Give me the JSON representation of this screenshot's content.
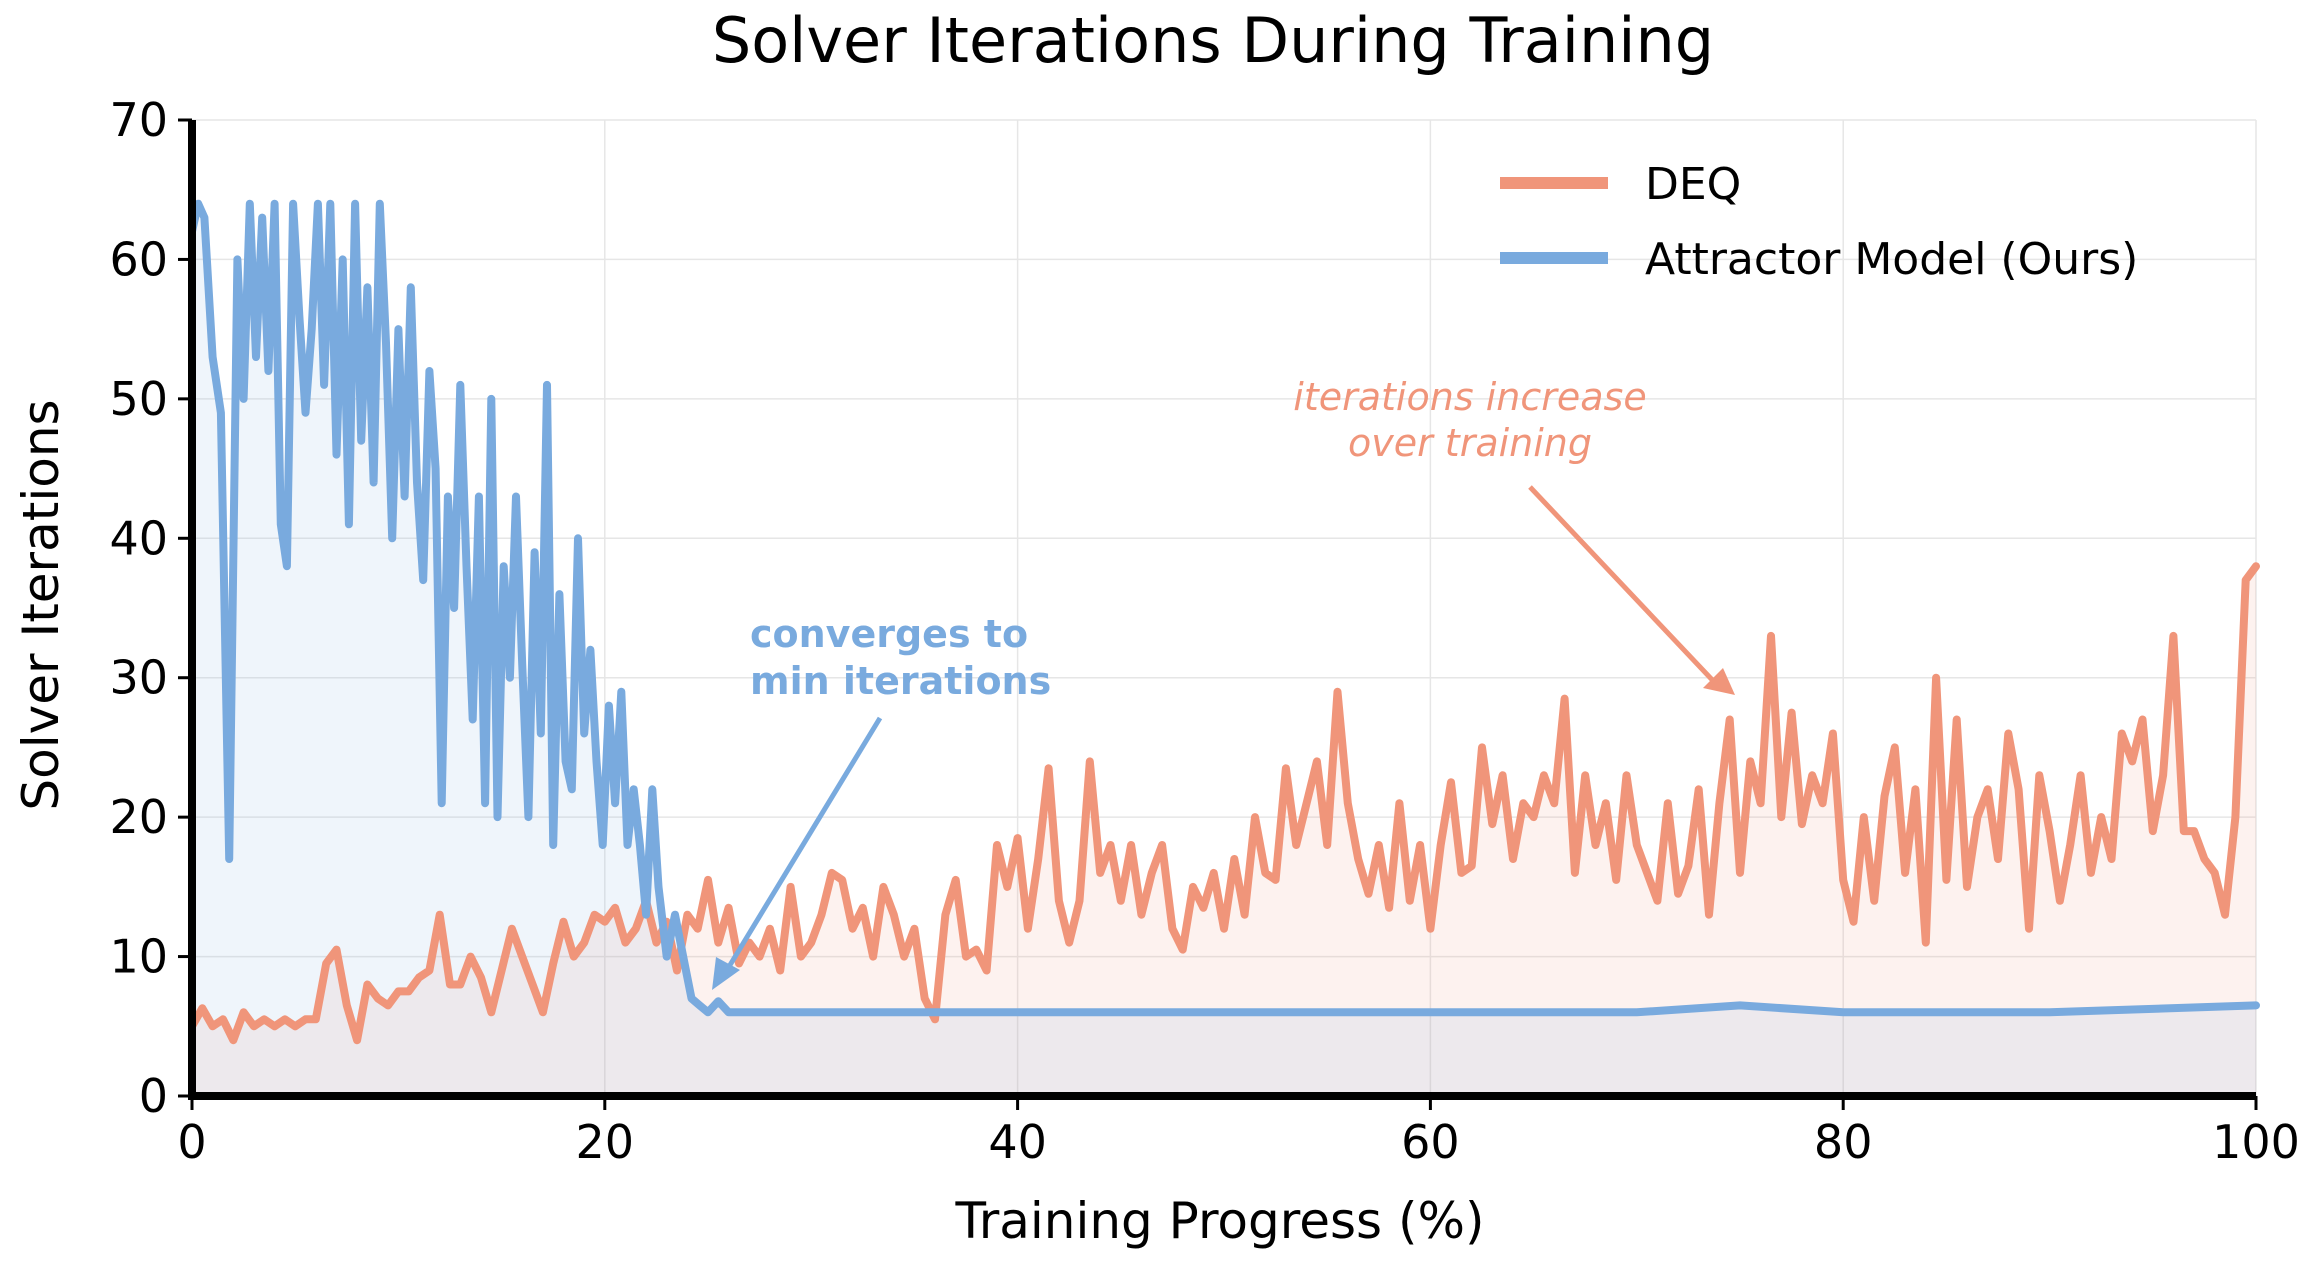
{
  "chart_data": {
    "type": "line",
    "title": "Solver Iterations During Training",
    "xlabel": "Training Progress (%)",
    "ylabel": "Solver Iterations",
    "xlim": [
      0,
      100
    ],
    "ylim": [
      0,
      70
    ],
    "xticks": [
      0,
      20,
      40,
      60,
      80,
      100
    ],
    "yticks": [
      0,
      10,
      20,
      30,
      40,
      50,
      60,
      70
    ],
    "grid": true,
    "legend_position": "top-right",
    "series": [
      {
        "name": "DEQ",
        "color": "#F0957A",
        "points": [
          [
            0,
            5
          ],
          [
            0.5,
            6.3
          ],
          [
            1,
            5
          ],
          [
            1.5,
            5.5
          ],
          [
            2,
            4
          ],
          [
            2.5,
            6
          ],
          [
            3,
            5
          ],
          [
            3.5,
            5.5
          ],
          [
            4,
            5
          ],
          [
            4.5,
            5.5
          ],
          [
            5,
            5
          ],
          [
            5.5,
            5.5
          ],
          [
            6,
            5.5
          ],
          [
            6.5,
            9.5
          ],
          [
            7,
            10.5
          ],
          [
            7.5,
            6.5
          ],
          [
            8,
            4
          ],
          [
            8.5,
            8
          ],
          [
            9,
            7
          ],
          [
            9.5,
            6.5
          ],
          [
            10,
            7.5
          ],
          [
            10.5,
            7.5
          ],
          [
            11,
            8.5
          ],
          [
            11.5,
            9
          ],
          [
            12,
            13
          ],
          [
            12.5,
            8
          ],
          [
            13,
            8
          ],
          [
            13.5,
            10
          ],
          [
            14,
            8.5
          ],
          [
            14.5,
            6
          ],
          [
            15,
            9
          ],
          [
            15.5,
            12
          ],
          [
            16,
            10
          ],
          [
            16.5,
            8
          ],
          [
            17,
            6
          ],
          [
            17.5,
            9.5
          ],
          [
            18,
            12.5
          ],
          [
            18.5,
            10
          ],
          [
            19,
            11
          ],
          [
            19.5,
            13
          ],
          [
            20,
            12.5
          ],
          [
            20.5,
            13.5
          ],
          [
            21,
            11
          ],
          [
            21.5,
            12
          ],
          [
            22,
            14
          ],
          [
            22.5,
            11
          ],
          [
            23,
            12.5
          ],
          [
            23.5,
            9
          ],
          [
            24,
            13
          ],
          [
            24.5,
            12
          ],
          [
            25,
            15.5
          ],
          [
            25.5,
            11
          ],
          [
            26,
            13.5
          ],
          [
            26.5,
            9.5
          ],
          [
            27,
            11
          ],
          [
            27.5,
            10
          ],
          [
            28,
            12
          ],
          [
            28.5,
            9
          ],
          [
            29,
            15
          ],
          [
            29.5,
            10
          ],
          [
            30,
            11
          ],
          [
            30.5,
            13
          ],
          [
            31,
            16
          ],
          [
            31.5,
            15.5
          ],
          [
            32,
            12
          ],
          [
            32.5,
            13.5
          ],
          [
            33,
            10
          ],
          [
            33.5,
            15
          ],
          [
            34,
            13
          ],
          [
            34.5,
            10
          ],
          [
            35,
            12
          ],
          [
            35.5,
            7
          ],
          [
            36,
            5.5
          ],
          [
            36.5,
            13
          ],
          [
            37,
            15.5
          ],
          [
            37.5,
            10
          ],
          [
            38,
            10.5
          ],
          [
            38.5,
            9
          ],
          [
            39,
            18
          ],
          [
            39.5,
            15
          ],
          [
            40,
            18.5
          ],
          [
            40.5,
            12
          ],
          [
            41,
            17
          ],
          [
            41.5,
            23.5
          ],
          [
            42,
            14
          ],
          [
            42.5,
            11
          ],
          [
            43,
            14
          ],
          [
            43.5,
            24
          ],
          [
            44,
            16
          ],
          [
            44.5,
            18
          ],
          [
            45,
            14
          ],
          [
            45.5,
            18
          ],
          [
            46,
            13
          ],
          [
            46.5,
            16
          ],
          [
            47,
            18
          ],
          [
            47.5,
            12
          ],
          [
            48,
            10.5
          ],
          [
            48.5,
            15
          ],
          [
            49,
            13.5
          ],
          [
            49.5,
            16
          ],
          [
            50,
            12
          ],
          [
            50.5,
            17
          ],
          [
            51,
            13
          ],
          [
            51.5,
            20
          ],
          [
            52,
            16
          ],
          [
            52.5,
            15.5
          ],
          [
            53,
            23.5
          ],
          [
            53.5,
            18
          ],
          [
            54,
            21
          ],
          [
            54.5,
            24
          ],
          [
            55,
            18
          ],
          [
            55.5,
            29
          ],
          [
            56,
            21
          ],
          [
            56.5,
            17
          ],
          [
            57,
            14.5
          ],
          [
            57.5,
            18
          ],
          [
            58,
            13.5
          ],
          [
            58.5,
            21
          ],
          [
            59,
            14
          ],
          [
            59.5,
            18
          ],
          [
            60,
            12
          ],
          [
            60.5,
            18
          ],
          [
            61,
            22.5
          ],
          [
            61.5,
            16
          ],
          [
            62,
            16.5
          ],
          [
            62.5,
            25
          ],
          [
            63,
            19.5
          ],
          [
            63.5,
            23
          ],
          [
            64,
            17
          ],
          [
            64.5,
            21
          ],
          [
            65,
            20
          ],
          [
            65.5,
            23
          ],
          [
            66,
            21
          ],
          [
            66.5,
            28.5
          ],
          [
            67,
            16
          ],
          [
            67.5,
            23
          ],
          [
            68,
            18
          ],
          [
            68.5,
            21
          ],
          [
            69,
            15.5
          ],
          [
            69.5,
            23
          ],
          [
            70,
            18
          ],
          [
            70.5,
            16
          ],
          [
            71,
            14
          ],
          [
            71.5,
            21
          ],
          [
            72,
            14.5
          ],
          [
            72.5,
            16.5
          ],
          [
            73,
            22
          ],
          [
            73.5,
            13
          ],
          [
            74,
            21
          ],
          [
            74.5,
            27
          ],
          [
            75,
            16
          ],
          [
            75.5,
            24
          ],
          [
            76,
            21
          ],
          [
            76.5,
            33
          ],
          [
            77,
            20
          ],
          [
            77.5,
            27.5
          ],
          [
            78,
            19.5
          ],
          [
            78.5,
            23
          ],
          [
            79,
            21
          ],
          [
            79.5,
            26
          ],
          [
            80,
            15.5
          ],
          [
            80.5,
            12.5
          ],
          [
            81,
            20
          ],
          [
            81.5,
            14
          ],
          [
            82,
            21.5
          ],
          [
            82.5,
            25
          ],
          [
            83,
            16
          ],
          [
            83.5,
            22
          ],
          [
            84,
            11
          ],
          [
            84.5,
            30
          ],
          [
            85,
            15.5
          ],
          [
            85.5,
            27
          ],
          [
            86,
            15
          ],
          [
            86.5,
            20
          ],
          [
            87,
            22
          ],
          [
            87.5,
            17
          ],
          [
            88,
            26
          ],
          [
            88.5,
            22
          ],
          [
            89,
            12
          ],
          [
            89.5,
            23
          ],
          [
            90,
            19
          ],
          [
            90.5,
            14
          ],
          [
            91,
            18
          ],
          [
            91.5,
            23
          ],
          [
            92,
            16
          ],
          [
            92.5,
            20
          ],
          [
            93,
            17
          ],
          [
            93.5,
            26
          ],
          [
            94,
            24
          ],
          [
            94.5,
            27
          ],
          [
            95,
            19
          ],
          [
            95.5,
            23
          ],
          [
            96,
            33
          ],
          [
            96.5,
            19
          ],
          [
            97,
            19
          ],
          [
            97.5,
            17
          ],
          [
            98,
            16
          ],
          [
            98.5,
            13
          ],
          [
            99,
            20
          ],
          [
            99.5,
            37
          ],
          [
            100,
            38
          ]
        ]
      },
      {
        "name": "Attractor Model (Ours)",
        "color": "#79AADE",
        "points": [
          [
            0,
            62
          ],
          [
            0.3,
            64
          ],
          [
            0.6,
            63
          ],
          [
            1,
            53
          ],
          [
            1.4,
            49
          ],
          [
            1.8,
            17
          ],
          [
            2.2,
            60
          ],
          [
            2.5,
            50
          ],
          [
            2.8,
            64
          ],
          [
            3.1,
            53
          ],
          [
            3.4,
            63
          ],
          [
            3.7,
            52
          ],
          [
            4,
            64
          ],
          [
            4.3,
            41
          ],
          [
            4.6,
            38
          ],
          [
            4.9,
            64
          ],
          [
            5.2,
            56
          ],
          [
            5.5,
            49
          ],
          [
            5.8,
            55
          ],
          [
            6.1,
            64
          ],
          [
            6.4,
            51
          ],
          [
            6.7,
            64
          ],
          [
            7,
            46
          ],
          [
            7.3,
            60
          ],
          [
            7.6,
            41
          ],
          [
            7.9,
            64
          ],
          [
            8.2,
            47
          ],
          [
            8.5,
            58
          ],
          [
            8.8,
            44
          ],
          [
            9.1,
            64
          ],
          [
            9.4,
            54
          ],
          [
            9.7,
            40
          ],
          [
            10,
            55
          ],
          [
            10.3,
            43
          ],
          [
            10.6,
            58
          ],
          [
            10.9,
            44
          ],
          [
            11.2,
            37
          ],
          [
            11.5,
            52
          ],
          [
            11.8,
            45
          ],
          [
            12.1,
            21
          ],
          [
            12.4,
            43
          ],
          [
            12.7,
            35
          ],
          [
            13,
            51
          ],
          [
            13.3,
            38
          ],
          [
            13.6,
            27
          ],
          [
            13.9,
            43
          ],
          [
            14.2,
            21
          ],
          [
            14.5,
            50
          ],
          [
            14.8,
            20
          ],
          [
            15.1,
            38
          ],
          [
            15.4,
            30
          ],
          [
            15.7,
            43
          ],
          [
            16,
            31
          ],
          [
            16.3,
            20
          ],
          [
            16.6,
            39
          ],
          [
            16.9,
            26
          ],
          [
            17.2,
            51
          ],
          [
            17.5,
            18
          ],
          [
            17.8,
            36
          ],
          [
            18.1,
            24
          ],
          [
            18.4,
            22
          ],
          [
            18.7,
            40
          ],
          [
            19,
            26
          ],
          [
            19.3,
            32
          ],
          [
            19.6,
            24
          ],
          [
            19.9,
            18
          ],
          [
            20.2,
            28
          ],
          [
            20.5,
            21
          ],
          [
            20.8,
            29
          ],
          [
            21.1,
            18
          ],
          [
            21.4,
            22
          ],
          [
            21.7,
            18
          ],
          [
            22,
            13
          ],
          [
            22.3,
            22
          ],
          [
            22.6,
            15
          ],
          [
            23,
            10
          ],
          [
            23.4,
            13
          ],
          [
            23.8,
            10
          ],
          [
            24.2,
            7
          ],
          [
            24.6,
            6.5
          ],
          [
            25,
            6
          ],
          [
            25.5,
            6.8
          ],
          [
            26,
            6
          ],
          [
            30,
            6
          ],
          [
            40,
            6
          ],
          [
            50,
            6
          ],
          [
            60,
            6
          ],
          [
            70,
            6
          ],
          [
            75,
            6.5
          ],
          [
            80,
            6
          ],
          [
            90,
            6
          ],
          [
            100,
            6.5
          ]
        ]
      }
    ],
    "annotations": [
      {
        "lines": [
          "iterations increase",
          "over training"
        ],
        "color": "#F0957A",
        "style": "italic"
      },
      {
        "lines": [
          "converges to",
          "min iterations"
        ],
        "color": "#79AADE",
        "style": "bold"
      }
    ]
  }
}
